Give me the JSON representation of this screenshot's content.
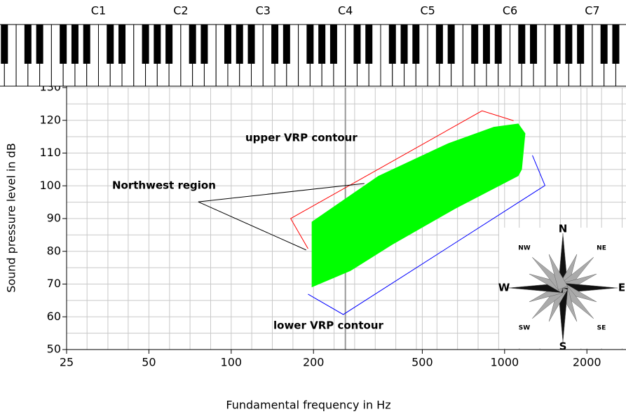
{
  "chart_data": {
    "type": "area",
    "xlabel": "Fundamental frequency in Hz",
    "ylabel": "Sound pressure level in dB",
    "xscale": "log",
    "xlim": [
      25,
      2780
    ],
    "ylim": [
      50,
      130
    ],
    "xticks": [
      25,
      50,
      100,
      200,
      500,
      1000,
      2000
    ],
    "yticks": [
      50,
      60,
      70,
      80,
      90,
      100,
      110,
      120,
      130
    ],
    "yminor": [
      55,
      65,
      75,
      85,
      95,
      105,
      115,
      125
    ],
    "xminor": [
      29.7,
      35.4,
      42.0,
      59.5,
      70.7,
      84.1,
      118.9,
      141.4,
      168.2,
      237.8,
      282.8,
      336.4,
      400,
      475.7,
      565.7,
      672.7,
      800,
      951.4,
      1131.4,
      1345.4,
      1600,
      1902.7,
      2262.7,
      2690.9
    ],
    "grid": true,
    "keyboard": {
      "labels": [
        "C1",
        "C2",
        "C3",
        "C4",
        "C5",
        "C6",
        "C7"
      ],
      "x": [
        32.7,
        65.4,
        130.8,
        261.6,
        523.3,
        1046.5,
        2093.0
      ]
    },
    "area": {
      "color": "#00ff00",
      "x": [
        197,
        345,
        623,
        913,
        1123,
        1191,
        1157,
        1123,
        660,
        388,
        273,
        197
      ],
      "y": [
        89,
        103,
        113,
        118,
        119,
        116,
        105,
        103,
        93,
        82,
        74,
        69
      ]
    },
    "contours": [
      {
        "label": "upper VRP contour",
        "color": "#ff0000",
        "x": [
          191,
          165,
          827,
          1078
        ],
        "y": [
          80.8,
          90.0,
          122.9,
          119.9
        ]
      },
      {
        "label": "lower VRP contour",
        "color": "#0000ff",
        "x": [
          1264,
          1405,
          257,
          191
        ],
        "y": [
          109.3,
          100.1,
          60.7,
          66.9
        ]
      }
    ],
    "pointer": {
      "label": "Northwest region",
      "x": [
        307,
        75.8,
        188
      ],
      "y": [
        100.7,
        95.1,
        80.4
      ]
    },
    "compass": [
      "N",
      "NE",
      "E",
      "SE",
      "S",
      "SW",
      "W",
      "NW"
    ]
  }
}
